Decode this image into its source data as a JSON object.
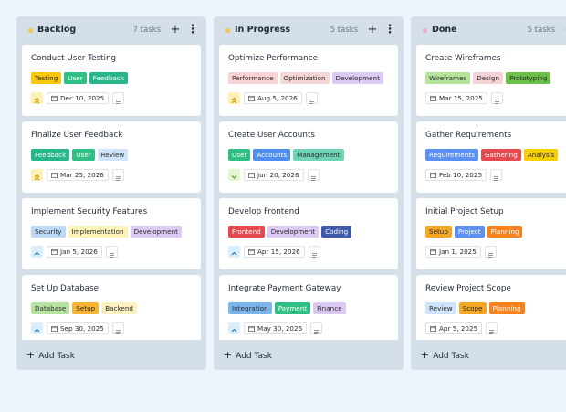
{
  "columns": [
    {
      "title": "Backlog",
      "count": "7 tasks",
      "dot_color": "#f6c84b",
      "add_task": "Add Task",
      "cards": [
        {
          "title": "Conduct User Testing",
          "tags": [
            {
              "label": "Testing",
              "bg": "#f9c80e",
              "fg": "#2b2b2b"
            },
            {
              "label": "User",
              "bg": "#2fbf84",
              "fg": "#ffffff"
            },
            {
              "label": "Feedback",
              "bg": "#27b58a",
              "fg": "#ffffff"
            }
          ],
          "priority": {
            "icon": "chevrons-up",
            "bg": "#fdf1b8",
            "fg": "#c79a00"
          },
          "date": "Dec 10, 2025"
        },
        {
          "title": "Finalize User Feedback",
          "tags": [
            {
              "label": "Feedback",
              "bg": "#27b58a",
              "fg": "#ffffff"
            },
            {
              "label": "User",
              "bg": "#2fbf84",
              "fg": "#ffffff"
            },
            {
              "label": "Review",
              "bg": "#cfe4fb",
              "fg": "#2b2b2b"
            }
          ],
          "priority": {
            "icon": "chevrons-up",
            "bg": "#fdf1b8",
            "fg": "#c79a00"
          },
          "date": "Mar 25, 2026"
        },
        {
          "title": "Implement Security Features",
          "tags": [
            {
              "label": "Security",
              "bg": "#bcd9f8",
              "fg": "#2b2b2b"
            },
            {
              "label": "Implementation",
              "bg": "#fdf3b8",
              "fg": "#2b2b2b"
            },
            {
              "label": "Development",
              "bg": "#dccaf5",
              "fg": "#2b2b2b"
            }
          ],
          "priority": {
            "icon": "chevron-up",
            "bg": "#dbeefc",
            "fg": "#2b7fc4"
          },
          "date": "Jan 5, 2026"
        },
        {
          "title": "Set Up Database",
          "tags": [
            {
              "label": "Database",
              "bg": "#b6e2a1",
              "fg": "#2b2b2b"
            },
            {
              "label": "Setup",
              "bg": "#f5b431",
              "fg": "#2b2b2b"
            },
            {
              "label": "Backend",
              "bg": "#fdf1c0",
              "fg": "#2b2b2b"
            }
          ],
          "priority": {
            "icon": "chevron-up",
            "bg": "#dbeefc",
            "fg": "#2b7fc4"
          },
          "date": "Sep 30, 2025"
        }
      ]
    },
    {
      "title": "In Progress",
      "count": "5 tasks",
      "dot_color": "#f6c84b",
      "add_task": "Add Task",
      "cards": [
        {
          "title": "Optimize Performance",
          "tags": [
            {
              "label": "Performance",
              "bg": "#f9d3d3",
              "fg": "#2b2b2b"
            },
            {
              "label": "Optimization",
              "bg": "#f6d5d5",
              "fg": "#2b2b2b"
            },
            {
              "label": "Development",
              "bg": "#dccaf5",
              "fg": "#2b2b2b"
            }
          ],
          "priority": {
            "icon": "chevrons-up",
            "bg": "#fdf1b8",
            "fg": "#c79a00"
          },
          "date": "Aug 5, 2026"
        },
        {
          "title": "Create User Accounts",
          "tags": [
            {
              "label": "User",
              "bg": "#2fbf84",
              "fg": "#ffffff"
            },
            {
              "label": "Accounts",
              "bg": "#4f8ef0",
              "fg": "#ffffff"
            },
            {
              "label": "Management",
              "bg": "#6fd3b5",
              "fg": "#2b2b2b"
            }
          ],
          "priority": {
            "icon": "chevron-down",
            "bg": "#e3f5cf",
            "fg": "#5a9a2a"
          },
          "date": "Jun 20, 2026"
        },
        {
          "title": "Develop Frontend",
          "tags": [
            {
              "label": "Frontend",
              "bg": "#e5484d",
              "fg": "#ffffff"
            },
            {
              "label": "Development",
              "bg": "#dccaf5",
              "fg": "#2b2b2b"
            },
            {
              "label": "Coding",
              "bg": "#3d5ba9",
              "fg": "#ffffff"
            }
          ],
          "priority": {
            "icon": "chevron-up",
            "bg": "#dbeefc",
            "fg": "#2b7fc4"
          },
          "date": "Apr 15, 2026"
        },
        {
          "title": "Integrate Payment Gateway",
          "tags": [
            {
              "label": "Integration",
              "bg": "#7cb5ec",
              "fg": "#2b2b2b"
            },
            {
              "label": "Payment",
              "bg": "#2fbf84",
              "fg": "#ffffff"
            },
            {
              "label": "Finance",
              "bg": "#dccaf5",
              "fg": "#2b2b2b"
            }
          ],
          "priority": {
            "icon": "chevron-up",
            "bg": "#dbeefc",
            "fg": "#2b7fc4"
          },
          "date": "May 30, 2026"
        }
      ]
    },
    {
      "title": "Done",
      "count": "5 tasks",
      "dot_color": "#f3a7d6",
      "add_task": "Add Task",
      "cards": [
        {
          "title": "Create Wireframes",
          "tags": [
            {
              "label": "Wireframes",
              "bg": "#b4e39b",
              "fg": "#2b2b2b"
            },
            {
              "label": "Design",
              "bg": "#f5d0d6",
              "fg": "#2b2b2b"
            },
            {
              "label": "Prototyping",
              "bg": "#6cc04a",
              "fg": "#2b2b2b"
            }
          ],
          "date": "Mar 15, 2025"
        },
        {
          "title": "Gather Requirements",
          "tags": [
            {
              "label": "Requirements",
              "bg": "#5b8ff0",
              "fg": "#ffffff"
            },
            {
              "label": "Gathering",
              "bg": "#e5484d",
              "fg": "#ffffff"
            },
            {
              "label": "Analysis",
              "bg": "#f7d000",
              "fg": "#2b2b2b"
            }
          ],
          "date": "Feb 10, 2025"
        },
        {
          "title": "Initial Project Setup",
          "tags": [
            {
              "label": "Setup",
              "bg": "#f5a623",
              "fg": "#2b2b2b"
            },
            {
              "label": "Project",
              "bg": "#5b8ff0",
              "fg": "#ffffff"
            },
            {
              "label": "Planning",
              "bg": "#f7821b",
              "fg": "#ffffff"
            }
          ],
          "date": "Jan 1, 2025"
        },
        {
          "title": "Review Project Scope",
          "tags": [
            {
              "label": "Review",
              "bg": "#cfe4fb",
              "fg": "#2b2b2b"
            },
            {
              "label": "Scope",
              "bg": "#f5a623",
              "fg": "#2b2b2b"
            },
            {
              "label": "Planning",
              "bg": "#f7821b",
              "fg": "#ffffff"
            }
          ],
          "date": "Apr 5, 2025"
        }
      ]
    }
  ]
}
